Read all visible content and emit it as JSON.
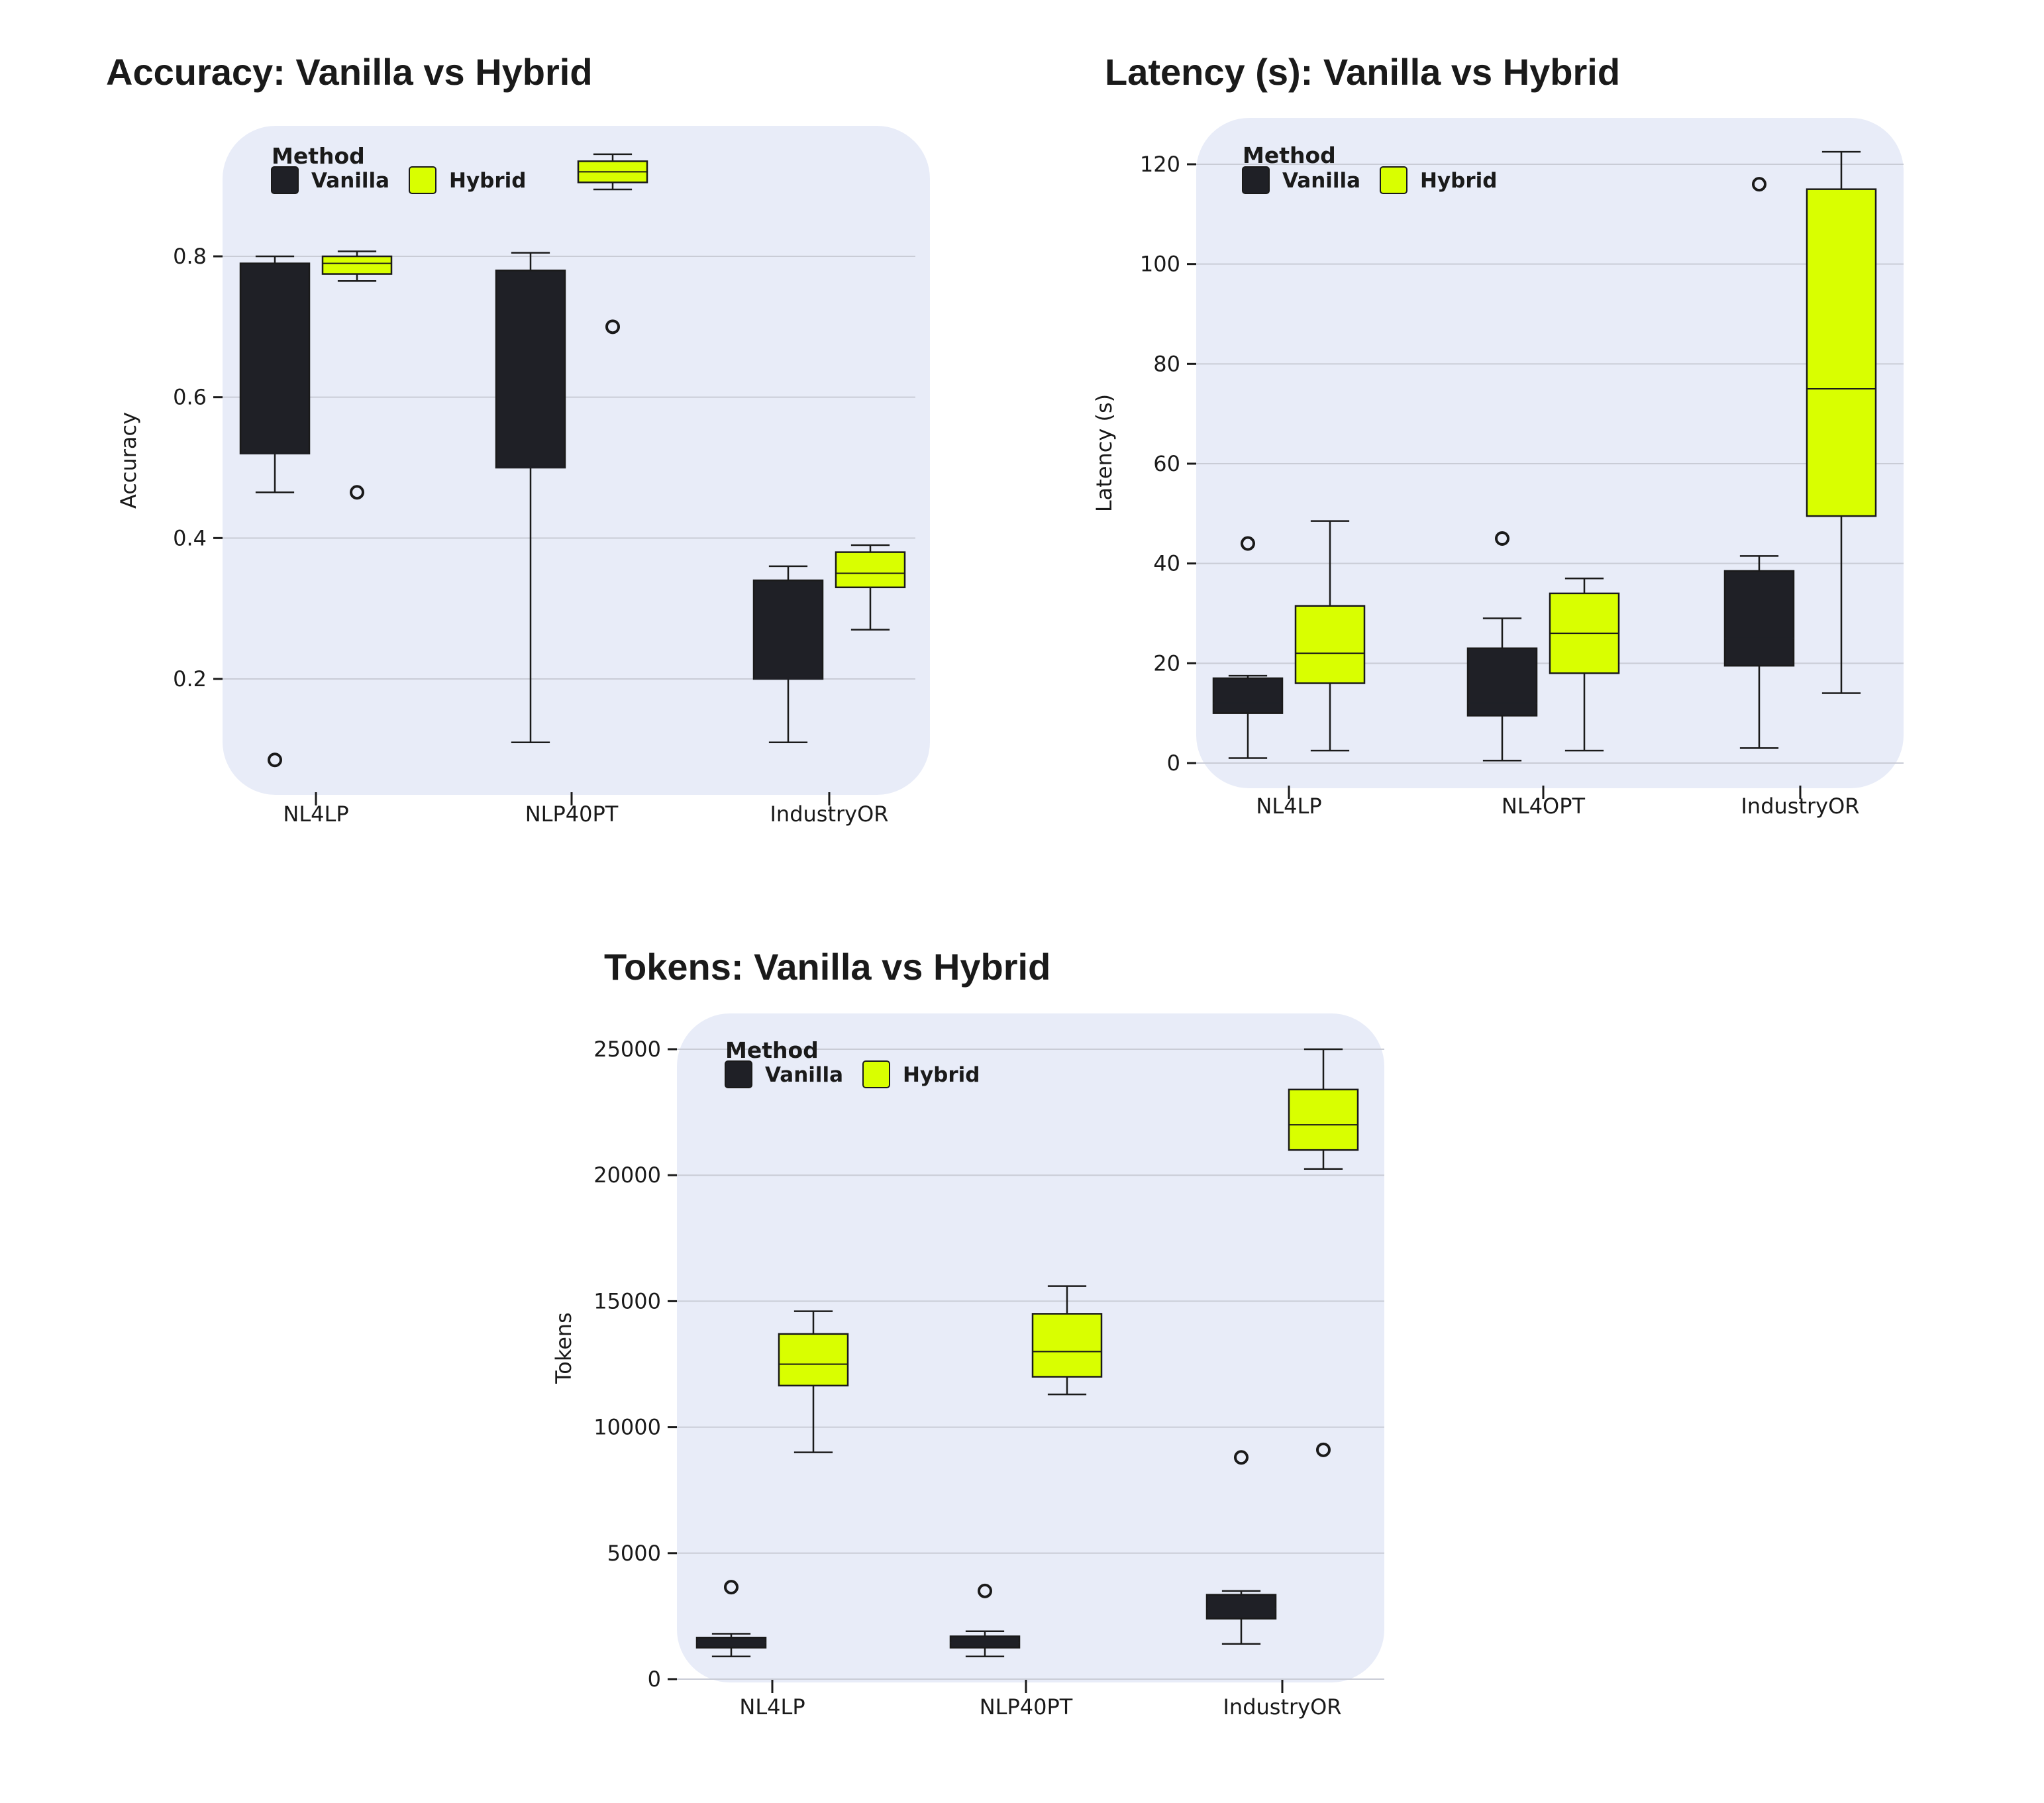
{
  "chart_data": [
    {
      "type": "boxplot",
      "title": "Accuracy: Vanilla vs Hybrid",
      "xlabel": "",
      "ylabel": "Accuracy",
      "ylim": [
        0.06,
        0.96
      ],
      "yticks": [
        0.2,
        0.4,
        0.6,
        0.8
      ],
      "ytick_labels": [
        "0.2",
        "0.4",
        "0.6",
        "0.8"
      ],
      "categories": [
        "NL4LP",
        "NLP40PT",
        "IndustryOR"
      ],
      "grid": true,
      "legend": {
        "title": "Method",
        "position": "top-left",
        "entries": [
          "Vanilla",
          "Hybrid"
        ]
      },
      "colors": {
        "Vanilla": "#1f2026",
        "Hybrid": "#d9ff00",
        "background": "#e8ecf8",
        "grid": "#c9ccd6"
      },
      "series": [
        {
          "name": "Vanilla",
          "boxes": [
            {
              "whisker_low": 0.465,
              "q1": 0.52,
              "median": 0.52,
              "q3": 0.79,
              "whisker_high": 0.8,
              "outliers": [
                0.085
              ]
            },
            {
              "whisker_low": 0.11,
              "q1": 0.5,
              "median": 0.5,
              "q3": 0.78,
              "whisker_high": 0.805,
              "outliers": []
            },
            {
              "whisker_low": 0.11,
              "q1": 0.2,
              "median": 0.2,
              "q3": 0.34,
              "whisker_high": 0.36,
              "outliers": []
            }
          ]
        },
        {
          "name": "Hybrid",
          "boxes": [
            {
              "whisker_low": 0.765,
              "q1": 0.775,
              "median": 0.79,
              "q3": 0.8,
              "whisker_high": 0.807,
              "outliers": [
                0.465
              ]
            },
            {
              "whisker_low": 0.895,
              "q1": 0.905,
              "median": 0.92,
              "q3": 0.935,
              "whisker_high": 0.945,
              "outliers": [
                0.7
              ]
            },
            {
              "whisker_low": 0.27,
              "q1": 0.33,
              "median": 0.35,
              "q3": 0.38,
              "whisker_high": 0.39,
              "outliers": []
            }
          ]
        }
      ]
    },
    {
      "type": "boxplot",
      "title": "Latency (s): Vanilla vs Hybrid",
      "xlabel": "",
      "ylabel": "Latency (s)",
      "ylim": [
        -5,
        126
      ],
      "yticks": [
        0,
        20,
        40,
        60,
        80,
        100,
        120
      ],
      "ytick_labels": [
        "0",
        "20",
        "40",
        "60",
        "80",
        "100",
        "120"
      ],
      "categories": [
        "NL4LP",
        "NL4OPT",
        "IndustryOR"
      ],
      "grid": true,
      "legend": {
        "title": "Method",
        "position": "top-left",
        "entries": [
          "Vanilla",
          "Hybrid"
        ]
      },
      "colors": {
        "Vanilla": "#1f2026",
        "Hybrid": "#d9ff00",
        "background": "#e8ecf8",
        "grid": "#c9ccd6"
      },
      "series": [
        {
          "name": "Vanilla",
          "boxes": [
            {
              "whisker_low": 1,
              "q1": 10,
              "median": 12,
              "q3": 17,
              "whisker_high": 17.5,
              "outliers": [
                44
              ]
            },
            {
              "whisker_low": 0.5,
              "q1": 9.5,
              "median": 12,
              "q3": 23,
              "whisker_high": 29,
              "outliers": [
                45
              ]
            },
            {
              "whisker_low": 3,
              "q1": 19.5,
              "median": 25,
              "q3": 38.5,
              "whisker_high": 41.5,
              "outliers": [
                116
              ]
            }
          ]
        },
        {
          "name": "Hybrid",
          "boxes": [
            {
              "whisker_low": 2.5,
              "q1": 16,
              "median": 22,
              "q3": 31.5,
              "whisker_high": 48.5,
              "outliers": []
            },
            {
              "whisker_low": 2.5,
              "q1": 18,
              "median": 26,
              "q3": 34,
              "whisker_high": 37,
              "outliers": []
            },
            {
              "whisker_low": 14,
              "q1": 49.5,
              "median": 75,
              "q3": 115,
              "whisker_high": 122.5,
              "outliers": []
            }
          ]
        }
      ]
    },
    {
      "type": "boxplot",
      "title": "Tokens: Vanilla vs Hybrid",
      "xlabel": "",
      "ylabel": "Tokens",
      "ylim": [
        -100,
        26000
      ],
      "yticks": [
        0,
        5000,
        10000,
        15000,
        20000,
        25000
      ],
      "ytick_labels": [
        "0",
        "5000",
        "10000",
        "15000",
        "20000",
        "25000"
      ],
      "categories": [
        "NL4LP",
        "NLP40PT",
        "IndustryOR"
      ],
      "grid": true,
      "legend": {
        "title": "Method",
        "position": "top-left",
        "entries": [
          "Vanilla",
          "Hybrid"
        ]
      },
      "colors": {
        "Vanilla": "#1f2026",
        "Hybrid": "#d9ff00",
        "background": "#e8ecf8",
        "grid": "#c9ccd6"
      },
      "series": [
        {
          "name": "Vanilla",
          "boxes": [
            {
              "whisker_low": 900,
              "q1": 1250,
              "median": 1450,
              "q3": 1650,
              "whisker_high": 1800,
              "outliers": [
                3650
              ]
            },
            {
              "whisker_low": 900,
              "q1": 1250,
              "median": 1450,
              "q3": 1700,
              "whisker_high": 1900,
              "outliers": [
                3500
              ]
            },
            {
              "whisker_low": 1400,
              "q1": 2400,
              "median": 2800,
              "q3": 3350,
              "whisker_high": 3500,
              "outliers": [
                8800
              ]
            }
          ]
        },
        {
          "name": "Hybrid",
          "boxes": [
            {
              "whisker_low": 9000,
              "q1": 11650,
              "median": 12500,
              "q3": 13700,
              "whisker_high": 14600,
              "outliers": []
            },
            {
              "whisker_low": 11300,
              "q1": 12000,
              "median": 13000,
              "q3": 14500,
              "whisker_high": 15600,
              "outliers": []
            },
            {
              "whisker_low": 20250,
              "q1": 21000,
              "median": 22000,
              "q3": 23400,
              "whisker_high": 25000,
              "outliers": [
                9100
              ]
            }
          ]
        }
      ]
    }
  ]
}
